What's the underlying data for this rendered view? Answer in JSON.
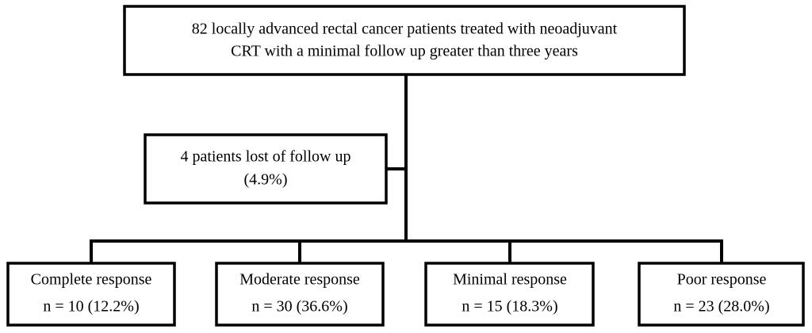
{
  "nodes": [
    {
      "lines": [
        "82 locally advanced rectal cancer patients treated with neoadjuvant",
        "CRT with a minimal follow up greater than three years"
      ]
    },
    {
      "lines": [
        "4 patients lost of follow up",
        "(4.9%)"
      ]
    },
    {
      "lines": [
        "Complete response",
        "n = 10 (12.2%)"
      ]
    },
    {
      "lines": [
        "Moderate response",
        "n = 30 (36.6%)"
      ]
    },
    {
      "lines": [
        "Minimal response",
        "n = 15 (18.3%)"
      ]
    },
    {
      "lines": [
        "Poor response",
        "n = 23 (28.0%)"
      ]
    }
  ]
}
